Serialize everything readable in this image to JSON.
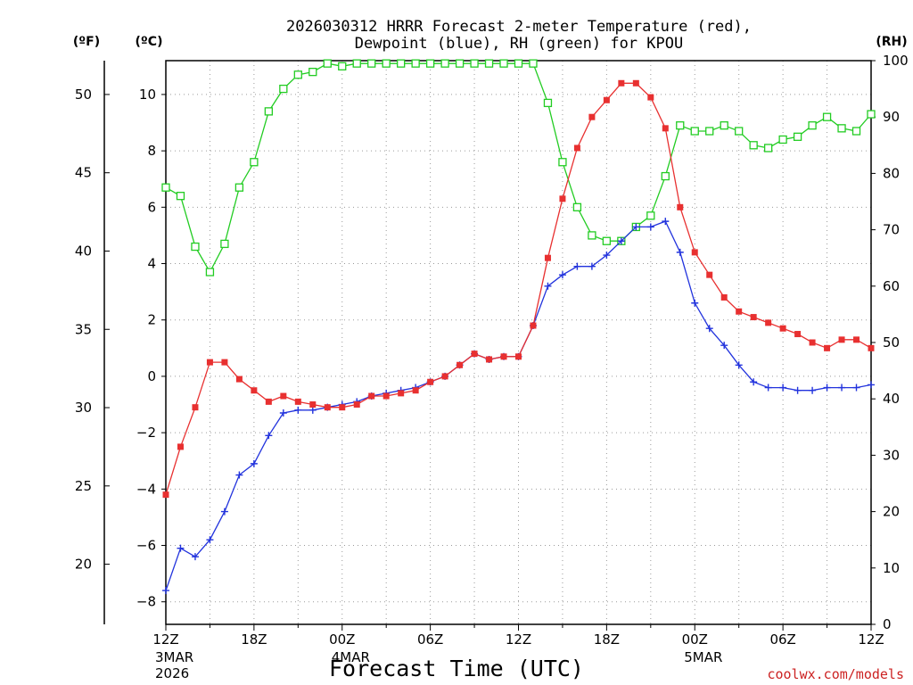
{
  "chart_data": {
    "type": "line",
    "title_line1": "2026030312 HRRR Forecast 2-meter Temperature (red),",
    "title_line2": "Dewpoint (blue), RH (green) for KPOU",
    "xlabel": "Forecast Time (UTC)",
    "credit": "coolwx.com/models",
    "unit_f": "(ºF)",
    "unit_c": "(ºC)",
    "unit_rh": "(RH)",
    "x_range_hours": [
      0,
      48
    ],
    "c_range": [
      -8.8,
      11.2
    ],
    "rh_range": [
      0,
      100
    ],
    "f_ticks": [
      "20",
      "25",
      "30",
      "35",
      "40",
      "45",
      "50"
    ],
    "c_ticks": [
      "-8",
      "-6",
      "-4",
      "-2",
      "0",
      "2",
      "4",
      "6",
      "8",
      "10"
    ],
    "rh_ticks": [
      "0",
      "10",
      "20",
      "30",
      "40",
      "50",
      "60",
      "70",
      "80",
      "90",
      "100"
    ],
    "x_ticks": [
      {
        "hour": 0,
        "label": "12Z",
        "sub1": "3MAR",
        "sub2": "2026"
      },
      {
        "hour": 6,
        "label": "18Z"
      },
      {
        "hour": 12,
        "label": "00Z",
        "sub1": "4MAR"
      },
      {
        "hour": 18,
        "label": "06Z"
      },
      {
        "hour": 24,
        "label": "12Z"
      },
      {
        "hour": 30,
        "label": "18Z"
      },
      {
        "hour": 36,
        "label": "00Z",
        "sub1": "5MAR"
      },
      {
        "hour": 42,
        "label": "06Z"
      },
      {
        "hour": 48,
        "label": "12Z"
      }
    ],
    "series": [
      {
        "name": "Temperature",
        "units": "°C",
        "color": "#e83030",
        "marker": "filled-square",
        "values": [
          -4.2,
          -2.5,
          -1.1,
          0.5,
          0.5,
          -0.1,
          -0.5,
          -0.9,
          -0.7,
          -0.9,
          -1.0,
          -1.1,
          -1.1,
          -1.0,
          -0.7,
          -0.7,
          -0.6,
          -0.5,
          -0.2,
          0.0,
          0.4,
          0.8,
          0.6,
          0.7,
          0.7,
          1.8,
          4.2,
          6.3,
          8.1,
          9.2,
          9.8,
          10.4,
          10.4,
          9.9,
          8.8,
          6.0,
          4.4,
          3.6,
          2.8,
          2.3,
          2.1,
          1.9,
          1.7,
          1.5,
          1.2,
          1.0,
          1.3,
          1.3,
          1.0
        ]
      },
      {
        "name": "Dewpoint",
        "units": "°C",
        "color": "#2233dd",
        "marker": "plus",
        "values": [
          -7.6,
          -6.1,
          -6.4,
          -5.8,
          -4.8,
          -3.5,
          -3.1,
          -2.1,
          -1.3,
          -1.2,
          -1.2,
          -1.1,
          -1.0,
          -0.9,
          -0.7,
          -0.6,
          -0.5,
          -0.4,
          -0.2,
          0.0,
          0.4,
          0.8,
          0.6,
          0.7,
          0.7,
          1.8,
          3.2,
          3.6,
          3.9,
          3.9,
          4.3,
          4.8,
          5.3,
          5.3,
          5.5,
          4.4,
          2.6,
          1.7,
          1.1,
          0.4,
          -0.2,
          -0.4,
          -0.4,
          -0.5,
          -0.5,
          -0.4,
          -0.4,
          -0.4,
          -0.3
        ]
      },
      {
        "name": "RH",
        "units": "%",
        "color": "#22cc22",
        "marker": "open-square",
        "values": [
          77.5,
          76,
          67,
          62.5,
          67.5,
          77.5,
          82,
          91,
          95,
          97.5,
          98,
          99.5,
          99,
          99.5,
          99.5,
          99.5,
          99.5,
          99.5,
          99.5,
          99.5,
          99.5,
          99.5,
          99.5,
          99.5,
          99.5,
          99.5,
          92.5,
          82,
          74,
          69,
          68,
          68,
          70.5,
          72.5,
          79.5,
          88.5,
          87.5,
          87.5,
          88.5,
          87.5,
          85,
          84.5,
          86,
          86.5,
          88.5,
          90,
          88,
          87.5,
          90.5
        ]
      }
    ]
  }
}
